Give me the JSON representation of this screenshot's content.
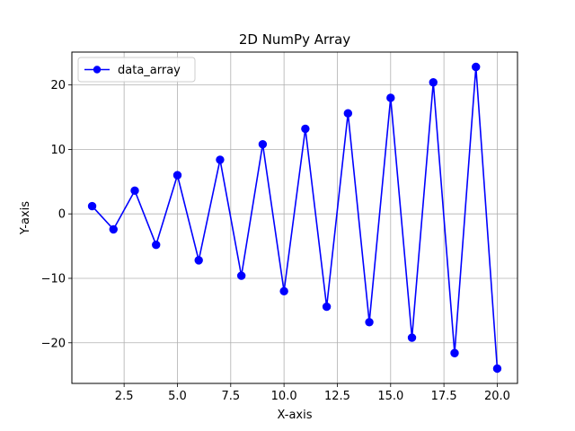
{
  "chart_data": {
    "type": "line",
    "title": "2D NumPy Array",
    "xlabel": "X-axis",
    "ylabel": "Y-axis",
    "xlim": [
      0.05,
      20.95
    ],
    "ylim": [
      -26.3,
      25.1
    ],
    "grid": true,
    "legend_position": "upper-left",
    "x_ticks": [
      2.5,
      5.0,
      7.5,
      10.0,
      12.5,
      15.0,
      17.5,
      20.0
    ],
    "x_tick_labels": [
      "2.5",
      "5.0",
      "7.5",
      "10.0",
      "12.5",
      "15.0",
      "17.5",
      "20.0"
    ],
    "y_ticks": [
      -20,
      -10,
      0,
      10,
      20
    ],
    "y_tick_labels": [
      "−20",
      "−10",
      "0",
      "10",
      "20"
    ],
    "series": [
      {
        "name": "data_array",
        "color": "#0000ff",
        "marker": "circle",
        "x": [
          1,
          2,
          3,
          4,
          5,
          6,
          7,
          8,
          9,
          10,
          11,
          12,
          13,
          14,
          15,
          16,
          17,
          18,
          19,
          20
        ],
        "y": [
          1.2,
          -2.4,
          3.6,
          -4.8,
          6.0,
          -7.2,
          8.4,
          -9.6,
          10.8,
          -12.0,
          13.2,
          -14.4,
          15.6,
          -16.8,
          18.0,
          -19.2,
          20.4,
          -21.6,
          22.8,
          -24.0
        ]
      }
    ]
  }
}
